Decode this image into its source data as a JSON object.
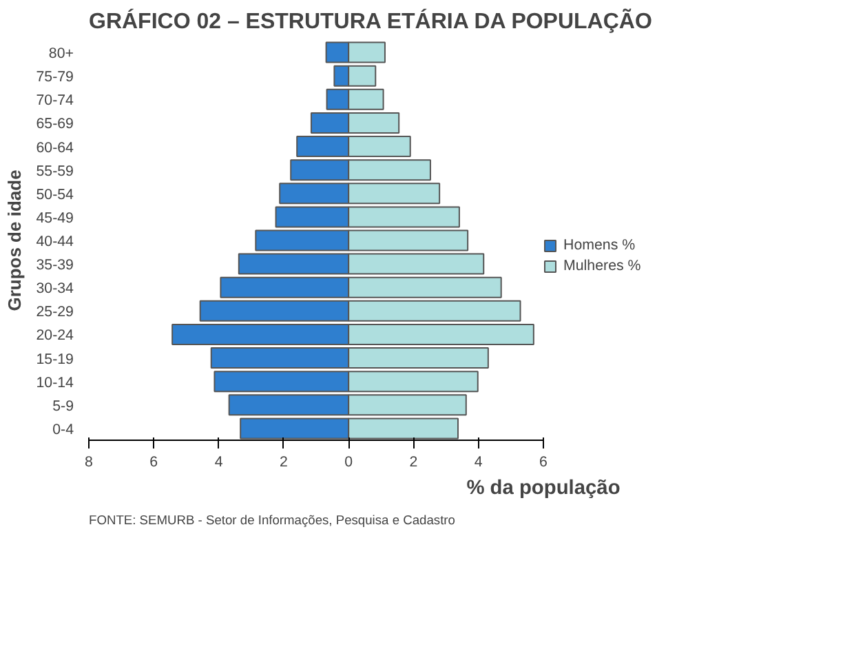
{
  "chart_data": {
    "type": "bar",
    "orientation": "horizontal",
    "title": "GRÁFICO 02 – ESTRUTURA ETÁRIA DA POPULAÇÃO",
    "categories": [
      "80+",
      "75-79",
      "70-74",
      "65-69",
      "60-64",
      "55-59",
      "50-54",
      "45-49",
      "40-44",
      "35-39",
      "30-34",
      "25-29",
      "20-24",
      "15-19",
      "10-14",
      "5-9",
      "0-4"
    ],
    "series": [
      {
        "name": "Homens %",
        "color": "#2f7fcf",
        "values": [
          -0.69,
          -0.44,
          -0.67,
          -1.15,
          -1.59,
          -1.78,
          -2.12,
          -2.24,
          -2.86,
          -3.38,
          -3.94,
          -4.57,
          -5.43,
          -4.23,
          -4.13,
          -3.68,
          -3.33
        ]
      },
      {
        "name": "Mulheres %",
        "color": "#aedede",
        "values": [
          1.12,
          0.83,
          1.07,
          1.55,
          1.9,
          2.52,
          2.8,
          3.41,
          3.67,
          4.16,
          4.7,
          5.29,
          5.7,
          4.3,
          3.98,
          3.62,
          3.37
        ]
      }
    ],
    "xlim": [
      -8,
      6
    ],
    "xticks": [
      {
        "value": -8,
        "label": "8"
      },
      {
        "value": -6,
        "label": "6"
      },
      {
        "value": -4,
        "label": "4"
      },
      {
        "value": -2,
        "label": "2"
      },
      0,
      2,
      4,
      6
    ],
    "xlabel": "% da população",
    "ylabel": "Grupos de idade",
    "annotations": [
      "FONTE:  SEMURB - Setor de Informações, Pesquisa e Cadastro"
    ],
    "legend": "right",
    "grid": false,
    "stacked": true
  }
}
